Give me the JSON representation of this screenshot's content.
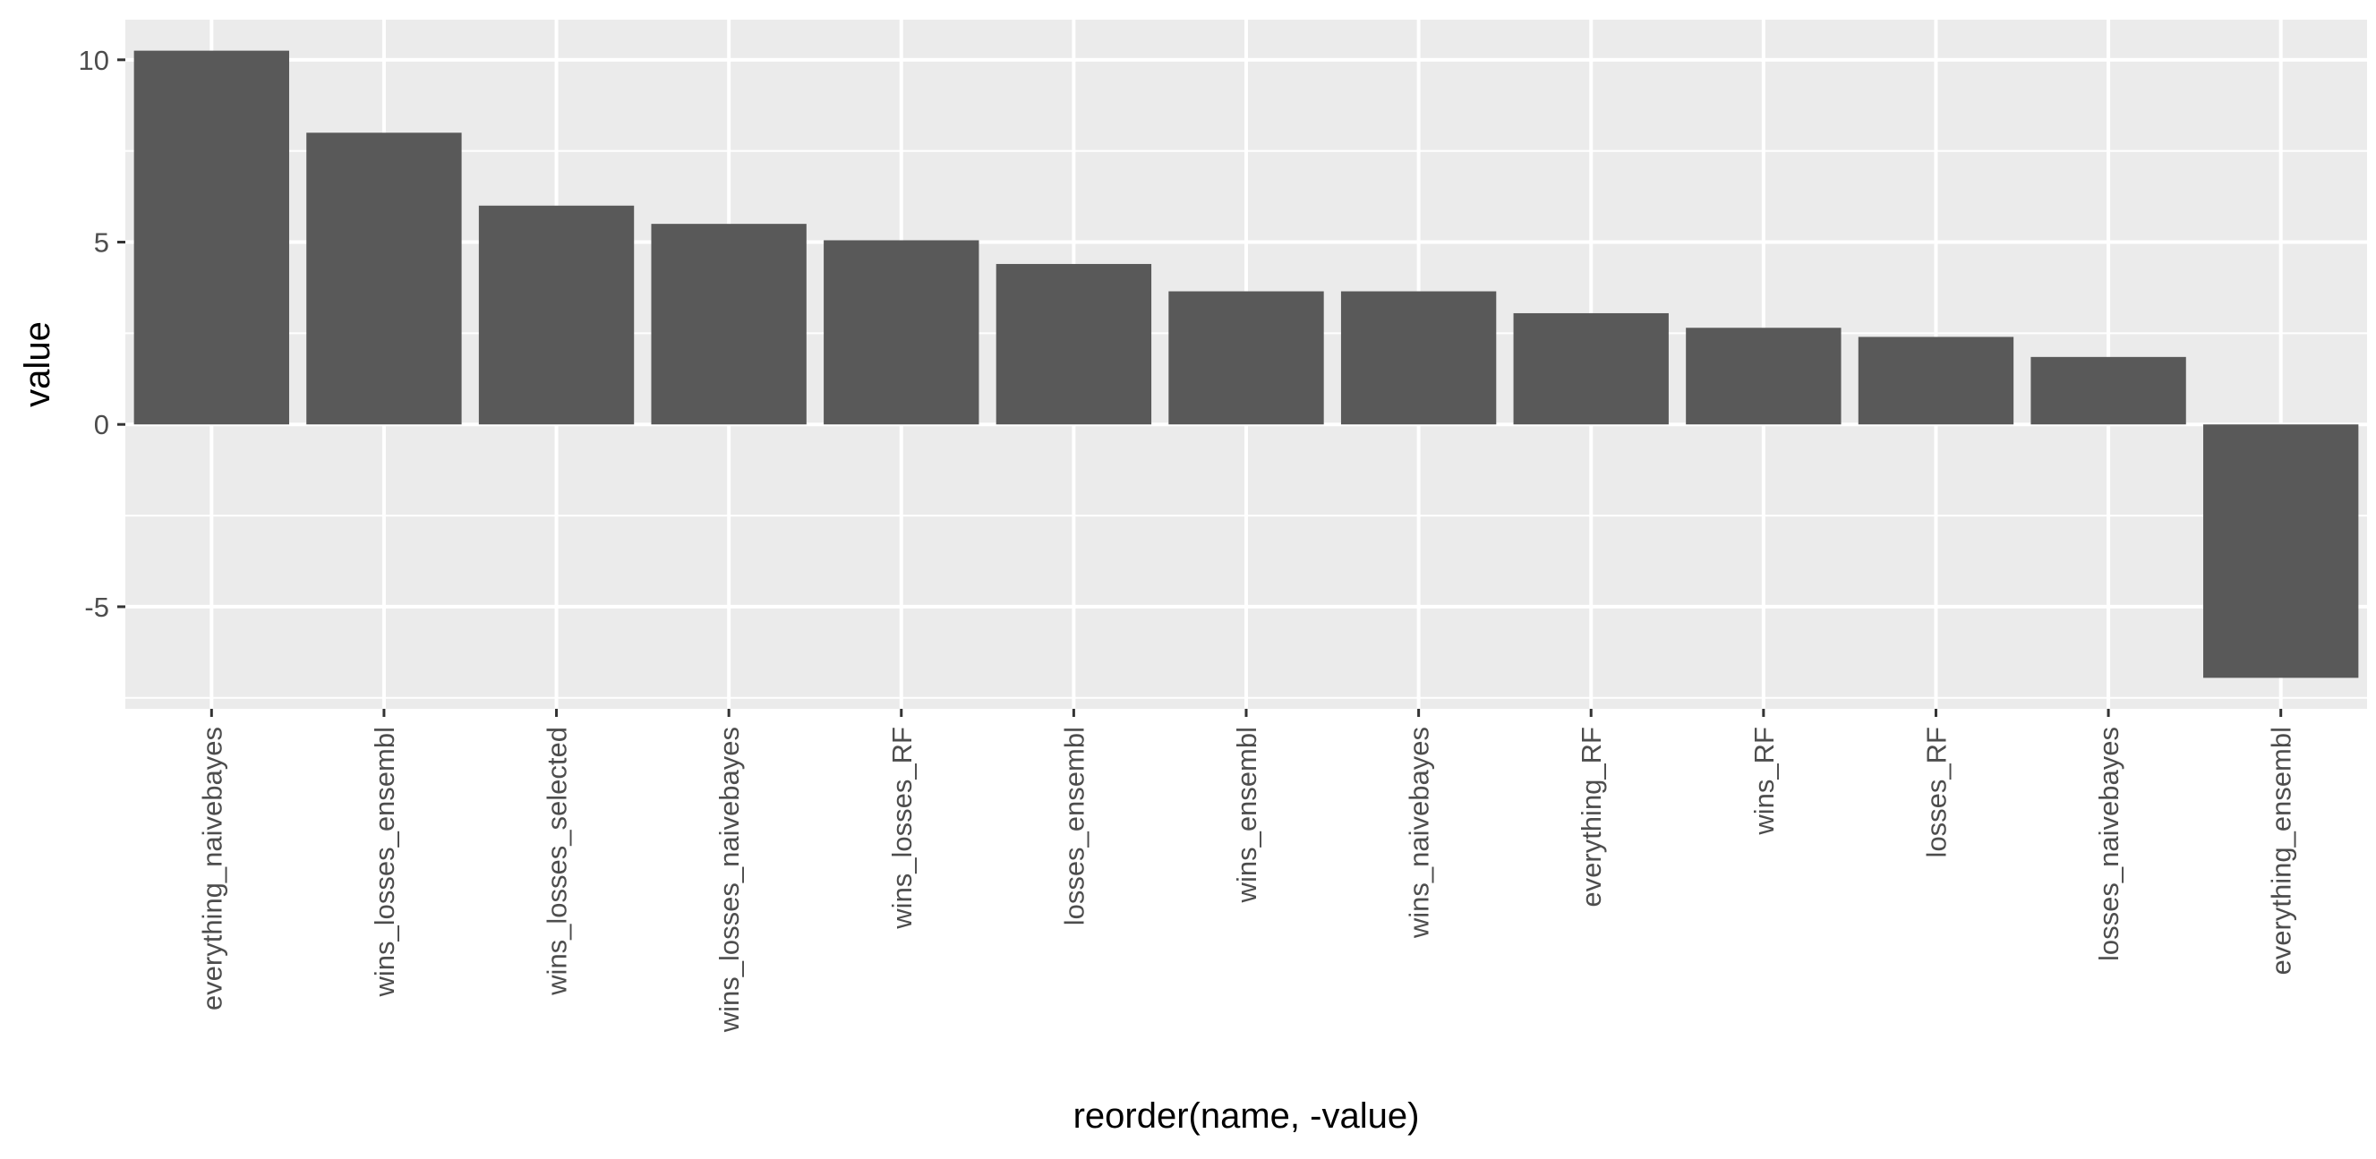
{
  "chart_data": {
    "type": "bar",
    "title": "",
    "xlabel": "reorder(name, -value)",
    "ylabel": "value",
    "categories": [
      "everything_naivebayes",
      "wins_losses_ensembl",
      "wins_losses_selected",
      "wins_losses_naivebayes",
      "wins_losses_RF",
      "losses_ensembl",
      "wins_ensembl",
      "wins_naivebayes",
      "everything_RF",
      "wins_RF",
      "losses_RF",
      "losses_naivebayes",
      "everything_ensembl"
    ],
    "values": [
      10.25,
      8.0,
      6.0,
      5.5,
      5.05,
      4.4,
      3.65,
      3.65,
      3.05,
      2.65,
      2.4,
      1.85,
      -6.95
    ],
    "ylim": [
      -7.8,
      11.1
    ],
    "yticks": [
      -5,
      0,
      5,
      10
    ],
    "ytick_labels": [
      "-5",
      "0",
      "5",
      "10"
    ],
    "grid": true,
    "legend": "none",
    "colors": {
      "bar": "#595959",
      "panel": "#ebebeb",
      "grid": "#ffffff",
      "tick_text": "#4d4d4d",
      "axis_ticks": "#333333",
      "title_text": "#000000"
    }
  }
}
